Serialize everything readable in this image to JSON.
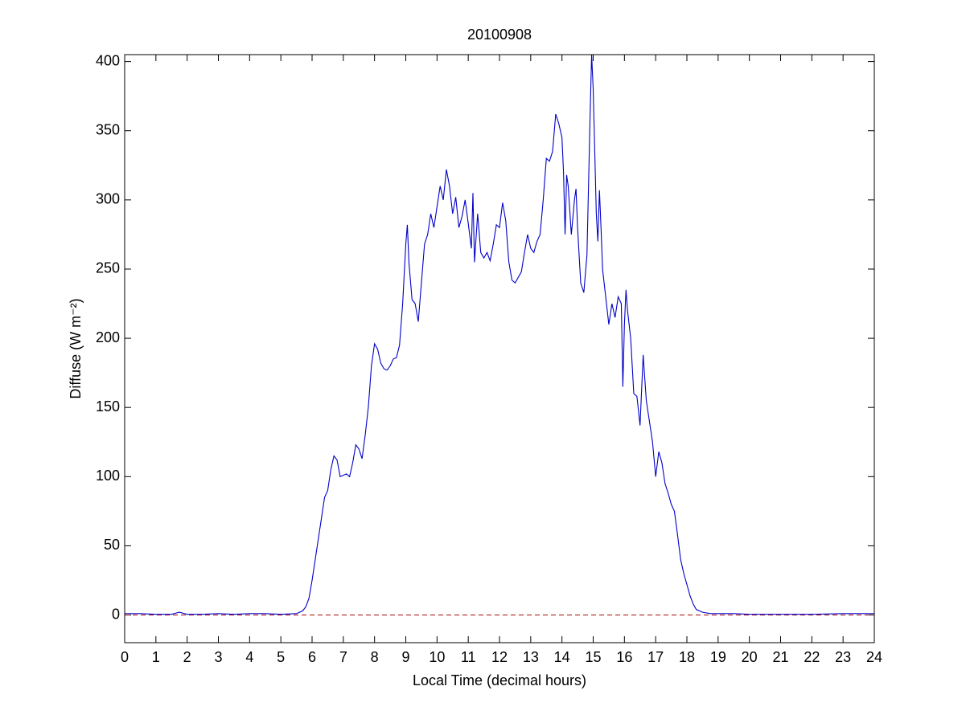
{
  "chart_data": {
    "type": "line",
    "title": "20100908",
    "xlabel": "Local Time (decimal hours)",
    "ylabel": "Diffuse (W m⁻²)",
    "x": [
      0,
      0.5,
      1,
      1.5,
      1.75,
      2,
      2.5,
      3,
      3.5,
      4,
      4.5,
      5,
      5.5,
      5.7,
      5.8,
      5.9,
      6.0,
      6.1,
      6.2,
      6.3,
      6.4,
      6.5,
      6.6,
      6.7,
      6.8,
      6.9,
      7.0,
      7.1,
      7.2,
      7.3,
      7.4,
      7.5,
      7.6,
      7.7,
      7.8,
      7.9,
      8.0,
      8.1,
      8.2,
      8.3,
      8.4,
      8.5,
      8.6,
      8.7,
      8.8,
      8.9,
      9.0,
      9.05,
      9.1,
      9.2,
      9.3,
      9.4,
      9.5,
      9.6,
      9.7,
      9.8,
      9.9,
      10.0,
      10.1,
      10.2,
      10.3,
      10.4,
      10.5,
      10.6,
      10.7,
      10.8,
      10.9,
      11.0,
      11.1,
      11.15,
      11.2,
      11.3,
      11.4,
      11.5,
      11.6,
      11.7,
      11.8,
      11.9,
      12.0,
      12.1,
      12.2,
      12.3,
      12.4,
      12.5,
      12.6,
      12.7,
      12.8,
      12.9,
      13.0,
      13.1,
      13.2,
      13.3,
      13.4,
      13.5,
      13.6,
      13.7,
      13.8,
      13.9,
      14.0,
      14.05,
      14.1,
      14.15,
      14.2,
      14.3,
      14.4,
      14.45,
      14.5,
      14.6,
      14.7,
      14.8,
      14.9,
      14.95,
      15.0,
      15.1,
      15.15,
      15.2,
      15.25,
      15.3,
      15.4,
      15.5,
      15.6,
      15.7,
      15.8,
      15.9,
      15.95,
      16.0,
      16.05,
      16.1,
      16.2,
      16.3,
      16.4,
      16.5,
      16.6,
      16.7,
      16.8,
      16.9,
      17.0,
      17.1,
      17.2,
      17.3,
      17.4,
      17.5,
      17.6,
      17.7,
      17.8,
      17.9,
      18.0,
      18.1,
      18.2,
      18.3,
      18.5,
      18.75,
      19,
      19.5,
      20,
      21,
      22,
      23,
      24
    ],
    "series": [
      {
        "name": "Diffuse",
        "color": "#0000c8",
        "values": [
          1,
          1,
          0.5,
          0.5,
          2,
          0.5,
          0.5,
          1,
          0.5,
          1,
          1,
          0.5,
          1,
          3,
          6,
          12,
          25,
          40,
          55,
          70,
          85,
          90,
          105,
          115,
          112,
          100,
          101,
          102,
          100,
          110,
          123,
          120,
          113,
          130,
          150,
          180,
          196,
          192,
          182,
          178,
          177,
          180,
          185,
          186,
          195,
          225,
          268,
          282,
          255,
          228,
          225,
          212,
          240,
          268,
          275,
          290,
          280,
          295,
          310,
          300,
          322,
          310,
          290,
          302,
          280,
          288,
          300,
          283,
          265,
          305,
          255,
          290,
          262,
          258,
          262,
          256,
          268,
          282,
          280,
          298,
          285,
          255,
          242,
          240,
          244,
          248,
          262,
          275,
          265,
          262,
          270,
          275,
          300,
          330,
          328,
          335,
          362,
          355,
          345,
          320,
          275,
          318,
          310,
          275,
          300,
          308,
          280,
          240,
          233,
          260,
          360,
          405,
          380,
          290,
          270,
          307,
          280,
          250,
          230,
          210,
          225,
          215,
          230,
          225,
          165,
          210,
          235,
          220,
          200,
          160,
          158,
          137,
          188,
          155,
          140,
          125,
          100,
          118,
          110,
          95,
          88,
          80,
          75,
          58,
          40,
          30,
          22,
          14,
          8,
          4,
          2,
          1,
          1,
          1,
          0.5,
          0.5,
          0.5,
          1,
          1
        ]
      }
    ],
    "reference_line": {
      "value": 0,
      "color": "#b22222",
      "style": "dashed"
    },
    "xlim": [
      0,
      24
    ],
    "xticks": [
      0,
      1,
      2,
      3,
      4,
      5,
      6,
      7,
      8,
      9,
      10,
      11,
      12,
      13,
      14,
      15,
      16,
      17,
      18,
      19,
      20,
      21,
      22,
      23,
      24
    ],
    "ylim": [
      -20,
      405
    ],
    "yticks": [
      0,
      50,
      100,
      150,
      200,
      250,
      300,
      350,
      400
    ],
    "grid": false
  }
}
